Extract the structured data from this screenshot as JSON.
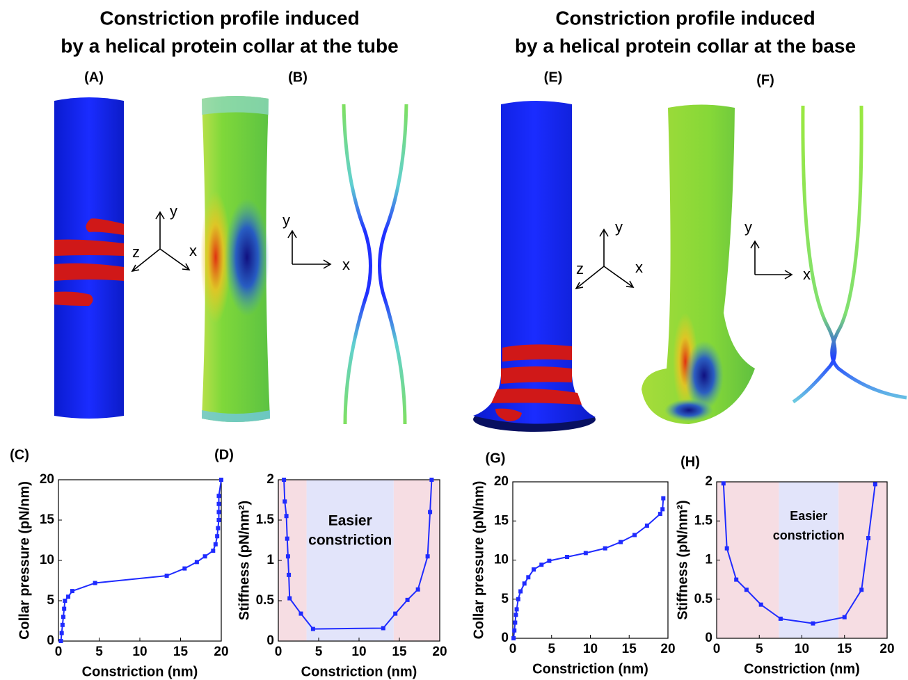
{
  "figure": {
    "titles": [
      [
        "Constriction profile induced",
        "by a helical protein collar at the tube"
      ],
      [
        "Constriction profile induced",
        "by a helical protein collar at the base"
      ]
    ],
    "panels": [
      "(A)",
      "(B)",
      "(C)",
      "(D)",
      "(E)",
      "(F)",
      "(G)",
      "(H)"
    ],
    "axis_letters": {
      "x": "x",
      "y": "y",
      "z": "z"
    }
  },
  "chart_data": [
    {
      "type": "line",
      "color": "#1f2bff",
      "xlabel": "Constriction (nm)",
      "ylabel": "Collar pressure (pN/nm)",
      "xlim": [
        0,
        20
      ],
      "ylim": [
        0,
        20
      ],
      "xticks": [
        0,
        5,
        10,
        15,
        20
      ],
      "yticks": [
        0,
        5,
        10,
        15,
        20
      ],
      "x": [
        0.3,
        0.4,
        0.5,
        0.6,
        0.7,
        0.8,
        1.2,
        1.7,
        4.5,
        13.3,
        15.5,
        17,
        18,
        19,
        19.3,
        19.5,
        19.6,
        19.7,
        19.7,
        19.7,
        19.7,
        20
      ],
      "values": [
        0,
        1,
        2,
        3,
        4,
        5,
        5.5,
        6.2,
        7.2,
        8.1,
        9,
        9.8,
        10.5,
        11.2,
        12,
        13,
        14,
        15,
        16,
        17,
        18,
        20
      ]
    },
    {
      "type": "line",
      "color": "#1f2bff",
      "xlabel": "Constriction (nm)",
      "ylabel": "Stiffness (pN/nm²)",
      "xlim": [
        0,
        20
      ],
      "ylim": [
        0,
        2
      ],
      "xticks": [
        0,
        5,
        10,
        15,
        20
      ],
      "yticks": [
        0,
        0.5,
        1,
        1.5,
        2
      ],
      "regions": [
        {
          "range": [
            0,
            3.5
          ],
          "color": "#f6dde3"
        },
        {
          "range": [
            3.5,
            14.3
          ],
          "color": "#e2e4fa"
        },
        {
          "range": [
            14.3,
            20
          ],
          "color": "#f6dde3"
        }
      ],
      "annotation": [
        "Easier",
        "constriction"
      ],
      "x": [
        0.7,
        0.8,
        1.0,
        1.1,
        1.2,
        1.3,
        1.4,
        2.8,
        4.3,
        13,
        14.5,
        16,
        17.3,
        18.5,
        18.8,
        19
      ],
      "values": [
        2,
        1.73,
        1.55,
        1.27,
        1.05,
        0.82,
        0.53,
        0.34,
        0.15,
        0.16,
        0.34,
        0.51,
        0.64,
        1.05,
        1.6,
        2
      ]
    },
    {
      "type": "line",
      "color": "#1f2bff",
      "xlabel": "Constriction (nm)",
      "ylabel": "Collar pressure (pN/nm)",
      "xlim": [
        0,
        20
      ],
      "ylim": [
        0,
        20
      ],
      "xticks": [
        0,
        5,
        10,
        15,
        20
      ],
      "yticks": [
        0,
        5,
        10,
        15,
        20
      ],
      "x": [
        0.1,
        0.2,
        0.3,
        0.4,
        0.5,
        0.7,
        1,
        1.5,
        2,
        2.7,
        3.7,
        4.7,
        7,
        9.4,
        11.9,
        13.9,
        15.7,
        17.3,
        19,
        19.3,
        19.4
      ],
      "values": [
        0,
        1,
        2,
        3,
        3.7,
        5,
        6,
        7,
        7.8,
        8.8,
        9.4,
        9.9,
        10.4,
        10.9,
        11.5,
        12.3,
        13.2,
        14.4,
        15.9,
        16.5,
        17.9
      ]
    },
    {
      "type": "line",
      "color": "#1f2bff",
      "xlabel": "Constriction (nm)",
      "ylabel": "Stiffness (pN/nm²)",
      "xlim": [
        0,
        20
      ],
      "ylim": [
        0,
        2
      ],
      "xticks": [
        0,
        5,
        10,
        15,
        20
      ],
      "yticks": [
        0,
        0.5,
        1,
        1.5,
        2
      ],
      "regions": [
        {
          "range": [
            0,
            7.3
          ],
          "color": "#f6dde3"
        },
        {
          "range": [
            7.3,
            14.3
          ],
          "color": "#e2e4fa"
        },
        {
          "range": [
            14.3,
            20
          ],
          "color": "#f6dde3"
        }
      ],
      "annotation": [
        "Easier",
        "constriction"
      ],
      "x": [
        0.8,
        1.2,
        2.3,
        3.5,
        5.2,
        7.5,
        11.3,
        15,
        17,
        17.8,
        18.6
      ],
      "values": [
        1.98,
        1.15,
        0.75,
        0.62,
        0.43,
        0.25,
        0.19,
        0.27,
        0.62,
        1.28,
        1.97
      ]
    }
  ]
}
